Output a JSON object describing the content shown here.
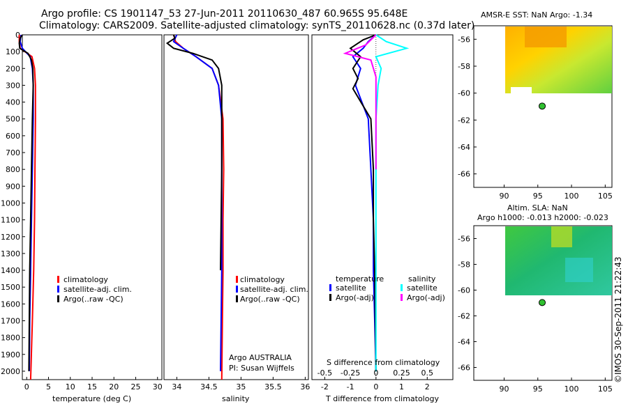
{
  "header": {
    "title1": "Argo profile: CS 1901147_53 27-Jun-2011 20110630_487 60.965S 95.648E",
    "title2": "Climatology: CARS2009. Satellite-adjusted climatology: synTS_20110628.nc (0.37d later)"
  },
  "colors": {
    "climatology": "#ff0000",
    "satellite": "#0000ff",
    "argo": "#000000",
    "sal_satellite": "#00ffff",
    "sal_argo": "#ff00ff"
  },
  "chart_data": [
    {
      "type": "line",
      "name": "temperature",
      "xlabel": "temperature (deg C)",
      "ylim": [
        2050,
        0
      ],
      "xlim": [
        -1,
        31
      ],
      "xticks": [
        "0",
        "5",
        "10",
        "15",
        "20",
        "25",
        "30"
      ],
      "yticks": [
        "0",
        "100",
        "200",
        "300",
        "400",
        "500",
        "600",
        "700",
        "800",
        "900",
        "1000",
        "1100",
        "1200",
        "1300",
        "1400",
        "1500",
        "1600",
        "1700",
        "1800",
        "1900",
        "2000"
      ],
      "legend": [
        "climatology",
        "satellite-adj. clim.",
        "Argo(..raw -QC)"
      ],
      "series": [
        {
          "name": "climatology",
          "x": [
            -1.7,
            -1.7,
            -1.5,
            1.2,
            1.8,
            2.0,
            2.0,
            1.9,
            1.8,
            1.6,
            1.3,
            0.9
          ],
          "y": [
            0,
            40,
            80,
            130,
            200,
            300,
            500,
            800,
            1100,
            1400,
            1700,
            2050
          ]
        },
        {
          "name": "satellite-adj. clim.",
          "x": [
            -1.3,
            -1.5,
            -1.0,
            0.8,
            1.3,
            1.5,
            1.5,
            1.3,
            1.1,
            0.9,
            0.7,
            0.6
          ],
          "y": [
            0,
            40,
            80,
            130,
            200,
            300,
            500,
            800,
            1100,
            1400,
            1700,
            2000
          ]
        },
        {
          "name": "Argo(..raw -QC)",
          "x": [
            -1.0,
            -1.5,
            -1.7,
            -1.6,
            0.3,
            1.1,
            1.4,
            1.5,
            1.3,
            1.1,
            0.9,
            0.7,
            0.5
          ],
          "y": [
            0,
            20,
            50,
            80,
            110,
            150,
            200,
            300,
            500,
            800,
            1100,
            1400,
            2000
          ]
        }
      ]
    },
    {
      "type": "line",
      "name": "salinity",
      "xlabel": "salinity",
      "ylim": [
        2050,
        0
      ],
      "xlim": [
        33.8,
        36.05
      ],
      "xticks": [
        "34",
        "34.5",
        "35",
        "35.5",
        "36"
      ],
      "legend": [
        "climatology",
        "satellite-adj. clim.",
        "Argo(..raw -QC)"
      ],
      "annotation": [
        "Argo AUSTRALIA",
        "PI: Susan Wijffels"
      ],
      "series": [
        {
          "name": "climatology",
          "x": [
            33.95,
            33.98,
            34.1,
            34.3,
            34.55,
            34.65,
            34.72,
            34.73,
            34.72,
            34.72,
            34.71,
            34.7
          ],
          "y": [
            0,
            40,
            80,
            130,
            200,
            300,
            500,
            800,
            1100,
            1400,
            1700,
            2050
          ]
        },
        {
          "name": "satellite-adj. clim.",
          "x": [
            34.0,
            33.95,
            34.1,
            34.3,
            34.55,
            34.65,
            34.7,
            34.7,
            34.7,
            34.7,
            34.69,
            34.68
          ],
          "y": [
            0,
            40,
            80,
            130,
            200,
            300,
            500,
            800,
            1100,
            1400,
            1700,
            2000
          ]
        },
        {
          "name": "Argo(..raw -QC)",
          "x": [
            33.95,
            33.97,
            33.85,
            33.95,
            34.25,
            34.55,
            34.65,
            34.7,
            34.7,
            34.7,
            34.69,
            34.68
          ],
          "y": [
            0,
            20,
            50,
            80,
            110,
            150,
            200,
            300,
            500,
            800,
            1100,
            1400
          ]
        }
      ]
    },
    {
      "type": "line",
      "name": "difference",
      "xlabel": "T difference from climatology",
      "xlabel2": "S difference from climatology",
      "ylim": [
        2050,
        0
      ],
      "xlim": [
        -2.5,
        3
      ],
      "xticks": [
        "-2",
        "-1",
        "0",
        "1",
        "2"
      ],
      "xticks2": [
        "-0.5",
        "-0.25",
        "0",
        "0.25",
        "0.5"
      ],
      "legend_title_t": "temperature",
      "legend_title_s": "salinity",
      "legend_t": [
        "satellite",
        "Argo(-adj)"
      ],
      "legend_s": [
        "satellite",
        "Argo(-adj)"
      ],
      "series": [
        {
          "name": "T satellite",
          "x": [
            0.0,
            -0.3,
            -0.5,
            -0.9,
            -0.6,
            -0.8,
            -0.3,
            -0.2,
            -0.1,
            -0.1,
            -0.05,
            0.0
          ],
          "y": [
            0,
            40,
            80,
            130,
            200,
            300,
            500,
            800,
            1100,
            1400,
            1700,
            2000
          ]
        },
        {
          "name": "T Argo(-adj)",
          "x": [
            0.0,
            -0.5,
            -1.0,
            -0.6,
            -0.9,
            -0.7,
            -0.9,
            -0.2,
            -0.1,
            -0.1,
            -0.05,
            0.0
          ],
          "y": [
            0,
            30,
            80,
            130,
            200,
            260,
            320,
            500,
            800,
            1100,
            1400,
            2000
          ]
        },
        {
          "name": "S satellite",
          "x": [
            0.0,
            0.1,
            0.3,
            0.0,
            0.05,
            0.02,
            0.0,
            0.0,
            0.0,
            0.0,
            0.0,
            0.0
          ],
          "y": [
            0,
            40,
            80,
            130,
            200,
            300,
            500,
            800,
            1100,
            1400,
            1700,
            2000
          ]
        },
        {
          "name": "S Argo(-adj)",
          "x": [
            0.0,
            -0.1,
            -0.3,
            -0.05,
            0.0,
            0.0,
            0.0
          ],
          "y": [
            0,
            60,
            110,
            150,
            250,
            400,
            800
          ]
        }
      ]
    },
    {
      "type": "heatmap",
      "name": "sst_map",
      "title": "AMSR-E SST: NaN Argo: -1.34",
      "xticks": [
        "90",
        "95",
        "100",
        "105"
      ],
      "yticks": [
        "-56",
        "-58",
        "-60",
        "-62",
        "-64",
        "-66"
      ],
      "argo_lon": 95.648,
      "argo_lat": -60.965
    },
    {
      "type": "heatmap",
      "name": "sla_map",
      "title1": "Altim. SLA: NaN",
      "title2": "Argo h1000: -0.013 h2000: -0.023",
      "xticks": [
        "90",
        "95",
        "100",
        "105"
      ],
      "yticks": [
        "-56",
        "-58",
        "-60",
        "-62",
        "-64",
        "-66"
      ],
      "argo_lon": 95.648,
      "argo_lat": -60.965
    }
  ],
  "footer": {
    "stamp": "©IMOS 30-Sep-2011 21:22:43"
  }
}
